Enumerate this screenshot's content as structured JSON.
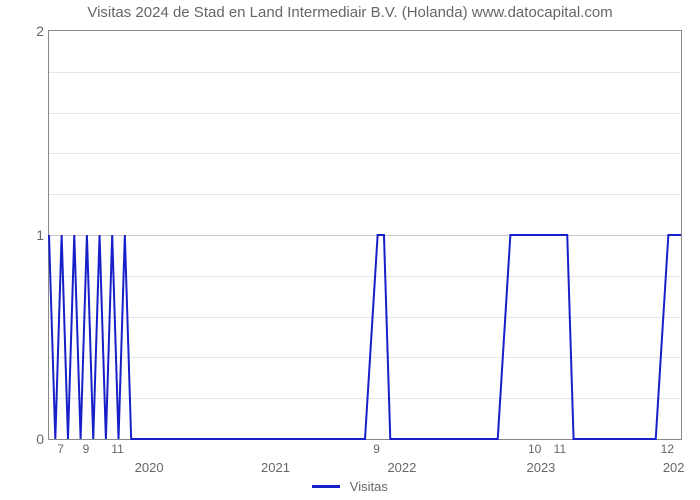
{
  "title": "Visitas 2024 de Stad en Land Intermediair B.V. (Holanda) www.datocapital.com",
  "chart": {
    "type": "line",
    "background_color": "#ffffff",
    "plot_border_color": "#888888",
    "grid_color_minor": "#e6e6e6",
    "grid_color_major": "#c8c8c8",
    "line_color": "#1720c8",
    "line_width": 2,
    "title_fontsize": 15,
    "tick_fontsize": 13,
    "text_color": "#666666",
    "ylim": [
      0,
      2
    ],
    "y_ticks": [
      {
        "value": 0,
        "label": "0",
        "major": true
      },
      {
        "value": 1,
        "label": "1",
        "major": true
      },
      {
        "value": 2,
        "label": "2",
        "major": true
      }
    ],
    "y_minor_gridlines": [
      0.2,
      0.4,
      0.6,
      0.8,
      1.2,
      1.4,
      1.6,
      1.8
    ],
    "x_domain": [
      0,
      100
    ],
    "x_ticks_top": [
      {
        "pos": 2,
        "label": "7"
      },
      {
        "pos": 6,
        "label": "9"
      },
      {
        "pos": 11,
        "label": "11"
      },
      {
        "pos": 52,
        "label": "9"
      },
      {
        "pos": 77,
        "label": "10"
      },
      {
        "pos": 81,
        "label": "11"
      },
      {
        "pos": 98,
        "label": "12"
      }
    ],
    "x_ticks_bottom": [
      {
        "pos": 16,
        "label": "2020"
      },
      {
        "pos": 36,
        "label": "2021"
      },
      {
        "pos": 56,
        "label": "2022"
      },
      {
        "pos": 78,
        "label": "2023"
      },
      {
        "pos": 99,
        "label": "202"
      }
    ],
    "legend": {
      "label": "Visitas",
      "color": "#1720c8",
      "swatch_width": 28
    },
    "series": {
      "x": [
        0,
        1,
        2,
        3,
        4,
        5,
        6,
        7,
        8,
        9,
        10,
        11,
        12,
        13,
        50,
        52,
        53,
        54,
        71,
        73,
        77,
        81,
        82,
        83,
        96,
        98,
        100
      ],
      "y": [
        1,
        0,
        1,
        0,
        1,
        0,
        1,
        0,
        1,
        0,
        1,
        0,
        1,
        0,
        0,
        1,
        1,
        0,
        0,
        1,
        1,
        1,
        1,
        0,
        0,
        1,
        1
      ]
    }
  }
}
